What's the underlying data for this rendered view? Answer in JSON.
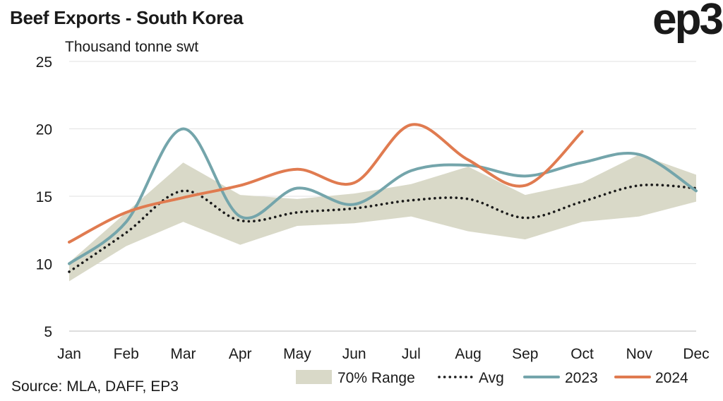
{
  "title": "Beef Exports - South Korea",
  "logo": "ep3",
  "source": "Source: MLA, DAFF, EP3",
  "chart_data": {
    "type": "line",
    "title": "Beef Exports - South Korea",
    "ylabel": "Thousand tonne swt",
    "xlabel": "",
    "categories": [
      "Jan",
      "Feb",
      "Mar",
      "Apr",
      "May",
      "Jun",
      "Jul",
      "Aug",
      "Sep",
      "Oct",
      "Nov",
      "Dec"
    ],
    "ylim": [
      5,
      25
    ],
    "yticks": [
      5,
      10,
      15,
      20,
      25
    ],
    "grid": true,
    "legend_position": "bottom",
    "range": {
      "name": "70% Range",
      "color": "#d9d9c8",
      "low": [
        8.7,
        11.3,
        13.1,
        11.4,
        12.8,
        13.0,
        13.5,
        12.4,
        11.8,
        13.1,
        13.5,
        14.6
      ],
      "high": [
        10.1,
        13.8,
        17.5,
        15.1,
        14.8,
        15.2,
        15.9,
        17.2,
        15.1,
        16.0,
        18.1,
        16.6
      ]
    },
    "series": [
      {
        "name": "Avg",
        "style": "dotted",
        "color": "#1a1a1a",
        "values": [
          9.4,
          12.3,
          15.4,
          13.2,
          13.8,
          14.1,
          14.7,
          14.8,
          13.4,
          14.6,
          15.8,
          15.6
        ]
      },
      {
        "name": "2023",
        "style": "solid",
        "color": "#74a5ab",
        "values": [
          10.0,
          13.1,
          20.0,
          13.5,
          15.6,
          14.4,
          16.9,
          17.3,
          16.5,
          17.5,
          18.1,
          15.4
        ]
      },
      {
        "name": "2024",
        "style": "solid",
        "color": "#e07b50",
        "values": [
          11.6,
          13.8,
          14.9,
          15.8,
          17.0,
          16.0,
          20.3,
          17.7,
          15.8,
          19.8,
          null,
          null
        ]
      }
    ]
  }
}
